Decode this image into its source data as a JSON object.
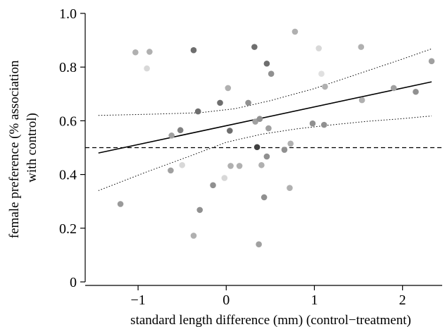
{
  "chart_data": {
    "type": "scatter",
    "title": "",
    "xlabel": "standard length difference (mm) (control−treatment)",
    "ylabel_lines": [
      "female preference (% association",
      "with control)"
    ],
    "xlim": [
      -1.6,
      2.45
    ],
    "ylim": [
      0,
      1.0
    ],
    "x_ticks": [
      -1,
      0,
      1,
      2
    ],
    "x_tick_labels": [
      "−1",
      "0",
      "1",
      "2"
    ],
    "y_ticks": [
      0,
      0.2,
      0.4,
      0.6,
      0.8,
      1.0
    ],
    "y_tick_labels": [
      "0",
      "0.2",
      "0.4",
      "0.6",
      "0.8",
      "1.0"
    ],
    "grid": false,
    "legend": "none",
    "reference_line": {
      "y": 0.5,
      "style": "dashed"
    },
    "regression": {
      "x_range": [
        -1.45,
        2.33
      ],
      "y_start": 0.48,
      "y_end": 0.745
    },
    "confidence_upper": {
      "x": [
        -1.45,
        -0.8,
        -0.3,
        0.1,
        0.5,
        1.0,
        1.5,
        2.0,
        2.33
      ],
      "y": [
        0.62,
        0.625,
        0.63,
        0.645,
        0.675,
        0.72,
        0.775,
        0.83,
        0.868
      ]
    },
    "confidence_lower": {
      "x": [
        -1.45,
        -0.9,
        -0.4,
        0.0,
        0.4,
        0.8,
        1.2,
        1.6,
        2.0,
        2.33
      ],
      "y": [
        0.34,
        0.41,
        0.47,
        0.52,
        0.55,
        0.57,
        0.585,
        0.598,
        0.608,
        0.618
      ]
    },
    "points": [
      {
        "x": -1.2,
        "y": 0.29,
        "color": "#9a9a9a"
      },
      {
        "x": -1.03,
        "y": 0.855,
        "color": "#b0b0b0"
      },
      {
        "x": -0.9,
        "y": 0.795,
        "color": "#d8d8d8"
      },
      {
        "x": -0.87,
        "y": 0.857,
        "color": "#b0b0b0"
      },
      {
        "x": -0.63,
        "y": 0.415,
        "color": "#a0a0a0"
      },
      {
        "x": -0.62,
        "y": 0.545,
        "color": "#a0a0a0"
      },
      {
        "x": -0.52,
        "y": 0.565,
        "color": "#808080"
      },
      {
        "x": -0.5,
        "y": 0.435,
        "color": "#d8d8d8"
      },
      {
        "x": -0.37,
        "y": 0.863,
        "color": "#6e6e6e"
      },
      {
        "x": -0.37,
        "y": 0.172,
        "color": "#b0b0b0"
      },
      {
        "x": -0.32,
        "y": 0.635,
        "color": "#6e6e6e"
      },
      {
        "x": -0.3,
        "y": 0.268,
        "color": "#909090"
      },
      {
        "x": -0.15,
        "y": 0.36,
        "color": "#909090"
      },
      {
        "x": -0.07,
        "y": 0.667,
        "color": "#6e6e6e"
      },
      {
        "x": -0.02,
        "y": 0.387,
        "color": "#d8d8d8"
      },
      {
        "x": 0.02,
        "y": 0.722,
        "color": "#b0b0b0"
      },
      {
        "x": 0.04,
        "y": 0.563,
        "color": "#6e6e6e"
      },
      {
        "x": 0.05,
        "y": 0.432,
        "color": "#b0b0b0"
      },
      {
        "x": 0.15,
        "y": 0.432,
        "color": "#b0b0b0"
      },
      {
        "x": 0.25,
        "y": 0.667,
        "color": "#909090"
      },
      {
        "x": 0.32,
        "y": 0.875,
        "color": "#6e6e6e"
      },
      {
        "x": 0.33,
        "y": 0.597,
        "color": "#a0a0a0"
      },
      {
        "x": 0.35,
        "y": 0.502,
        "color": "#404040"
      },
      {
        "x": 0.37,
        "y": 0.14,
        "color": "#a0a0a0"
      },
      {
        "x": 0.38,
        "y": 0.607,
        "color": "#909090"
      },
      {
        "x": 0.4,
        "y": 0.435,
        "color": "#b0b0b0"
      },
      {
        "x": 0.43,
        "y": 0.315,
        "color": "#909090"
      },
      {
        "x": 0.46,
        "y": 0.813,
        "color": "#6e6e6e"
      },
      {
        "x": 0.46,
        "y": 0.467,
        "color": "#909090"
      },
      {
        "x": 0.48,
        "y": 0.572,
        "color": "#a0a0a0"
      },
      {
        "x": 0.51,
        "y": 0.775,
        "color": "#909090"
      },
      {
        "x": 0.66,
        "y": 0.492,
        "color": "#909090"
      },
      {
        "x": 0.72,
        "y": 0.35,
        "color": "#b0b0b0"
      },
      {
        "x": 0.73,
        "y": 0.515,
        "color": "#b0b0b0"
      },
      {
        "x": 0.78,
        "y": 0.932,
        "color": "#b0b0b0"
      },
      {
        "x": 0.98,
        "y": 0.59,
        "color": "#909090"
      },
      {
        "x": 1.05,
        "y": 0.87,
        "color": "#d8d8d8"
      },
      {
        "x": 1.08,
        "y": 0.775,
        "color": "#e0e0e0"
      },
      {
        "x": 1.11,
        "y": 0.585,
        "color": "#909090"
      },
      {
        "x": 1.12,
        "y": 0.727,
        "color": "#b0b0b0"
      },
      {
        "x": 1.53,
        "y": 0.875,
        "color": "#b0b0b0"
      },
      {
        "x": 1.54,
        "y": 0.677,
        "color": "#b0b0b0"
      },
      {
        "x": 1.9,
        "y": 0.722,
        "color": "#a0a0a0"
      },
      {
        "x": 2.15,
        "y": 0.708,
        "color": "#909090"
      },
      {
        "x": 2.33,
        "y": 0.822,
        "color": "#a0a0a0"
      }
    ]
  }
}
